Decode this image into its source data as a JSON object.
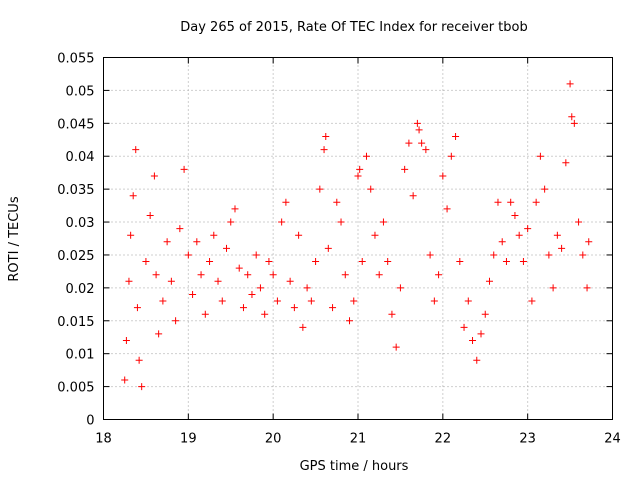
{
  "chart_data": {
    "type": "scatter",
    "title": "Day 265 of 2015, Rate Of TEC Index for receiver tbob",
    "xlabel": "GPS time / hours",
    "ylabel": "ROTI / TECUs",
    "xlim": [
      18,
      24
    ],
    "ylim": [
      0,
      0.055
    ],
    "xticks": [
      "18",
      "19",
      "20",
      "21",
      "22",
      "23",
      "24"
    ],
    "yticks": [
      "0",
      "0.005",
      "0.01",
      "0.015",
      "0.02",
      "0.025",
      "0.03",
      "0.035",
      "0.04",
      "0.045",
      "0.05",
      "0.055"
    ],
    "grid": true,
    "marker": "plus",
    "series_color": "#ff0000",
    "series": [
      {
        "name": "ROTI",
        "points": [
          [
            18.25,
            0.006
          ],
          [
            18.27,
            0.012
          ],
          [
            18.3,
            0.021
          ],
          [
            18.32,
            0.028
          ],
          [
            18.35,
            0.034
          ],
          [
            18.38,
            0.041
          ],
          [
            18.4,
            0.017
          ],
          [
            18.42,
            0.009
          ],
          [
            18.45,
            0.005
          ],
          [
            18.5,
            0.024
          ],
          [
            18.55,
            0.031
          ],
          [
            18.6,
            0.037
          ],
          [
            18.62,
            0.022
          ],
          [
            18.65,
            0.013
          ],
          [
            18.7,
            0.018
          ],
          [
            18.75,
            0.027
          ],
          [
            18.8,
            0.021
          ],
          [
            18.85,
            0.015
          ],
          [
            18.9,
            0.029
          ],
          [
            18.95,
            0.038
          ],
          [
            19.0,
            0.025
          ],
          [
            19.05,
            0.019
          ],
          [
            19.1,
            0.027
          ],
          [
            19.15,
            0.022
          ],
          [
            19.2,
            0.016
          ],
          [
            19.25,
            0.024
          ],
          [
            19.3,
            0.028
          ],
          [
            19.35,
            0.021
          ],
          [
            19.4,
            0.018
          ],
          [
            19.45,
            0.026
          ],
          [
            19.5,
            0.03
          ],
          [
            19.55,
            0.032
          ],
          [
            19.6,
            0.023
          ],
          [
            19.65,
            0.017
          ],
          [
            19.7,
            0.022
          ],
          [
            19.75,
            0.019
          ],
          [
            19.8,
            0.025
          ],
          [
            19.85,
            0.02
          ],
          [
            19.9,
            0.016
          ],
          [
            19.95,
            0.024
          ],
          [
            20.0,
            0.022
          ],
          [
            20.05,
            0.018
          ],
          [
            20.1,
            0.03
          ],
          [
            20.15,
            0.033
          ],
          [
            20.2,
            0.021
          ],
          [
            20.25,
            0.017
          ],
          [
            20.3,
            0.028
          ],
          [
            20.35,
            0.014
          ],
          [
            20.4,
            0.02
          ],
          [
            20.45,
            0.018
          ],
          [
            20.5,
            0.024
          ],
          [
            20.55,
            0.035
          ],
          [
            20.6,
            0.041
          ],
          [
            20.62,
            0.043
          ],
          [
            20.65,
            0.026
          ],
          [
            20.7,
            0.017
          ],
          [
            20.75,
            0.033
          ],
          [
            20.8,
            0.03
          ],
          [
            20.85,
            0.022
          ],
          [
            20.9,
            0.015
          ],
          [
            20.95,
            0.018
          ],
          [
            21.0,
            0.037
          ],
          [
            21.02,
            0.038
          ],
          [
            21.05,
            0.024
          ],
          [
            21.1,
            0.04
          ],
          [
            21.15,
            0.035
          ],
          [
            21.2,
            0.028
          ],
          [
            21.25,
            0.022
          ],
          [
            21.3,
            0.03
          ],
          [
            21.35,
            0.024
          ],
          [
            21.4,
            0.016
          ],
          [
            21.45,
            0.011
          ],
          [
            21.5,
            0.02
          ],
          [
            21.55,
            0.038
          ],
          [
            21.6,
            0.042
          ],
          [
            21.65,
            0.034
          ],
          [
            21.7,
            0.045
          ],
          [
            21.72,
            0.044
          ],
          [
            21.75,
            0.042
          ],
          [
            21.8,
            0.041
          ],
          [
            21.85,
            0.025
          ],
          [
            21.9,
            0.018
          ],
          [
            21.95,
            0.022
          ],
          [
            22.0,
            0.037
          ],
          [
            22.05,
            0.032
          ],
          [
            22.1,
            0.04
          ],
          [
            22.15,
            0.043
          ],
          [
            22.2,
            0.024
          ],
          [
            22.25,
            0.014
          ],
          [
            22.3,
            0.018
          ],
          [
            22.35,
            0.012
          ],
          [
            22.4,
            0.009
          ],
          [
            22.45,
            0.013
          ],
          [
            22.5,
            0.016
          ],
          [
            22.55,
            0.021
          ],
          [
            22.6,
            0.025
          ],
          [
            22.65,
            0.033
          ],
          [
            22.7,
            0.027
          ],
          [
            22.75,
            0.024
          ],
          [
            22.8,
            0.033
          ],
          [
            22.85,
            0.031
          ],
          [
            22.9,
            0.028
          ],
          [
            22.95,
            0.024
          ],
          [
            23.0,
            0.029
          ],
          [
            23.05,
            0.018
          ],
          [
            23.1,
            0.033
          ],
          [
            23.15,
            0.04
          ],
          [
            23.2,
            0.035
          ],
          [
            23.25,
            0.025
          ],
          [
            23.3,
            0.02
          ],
          [
            23.35,
            0.028
          ],
          [
            23.4,
            0.026
          ],
          [
            23.45,
            0.039
          ],
          [
            23.5,
            0.051
          ],
          [
            23.52,
            0.046
          ],
          [
            23.55,
            0.045
          ],
          [
            23.6,
            0.03
          ],
          [
            23.65,
            0.025
          ],
          [
            23.7,
            0.02
          ],
          [
            23.72,
            0.027
          ]
        ]
      }
    ]
  }
}
